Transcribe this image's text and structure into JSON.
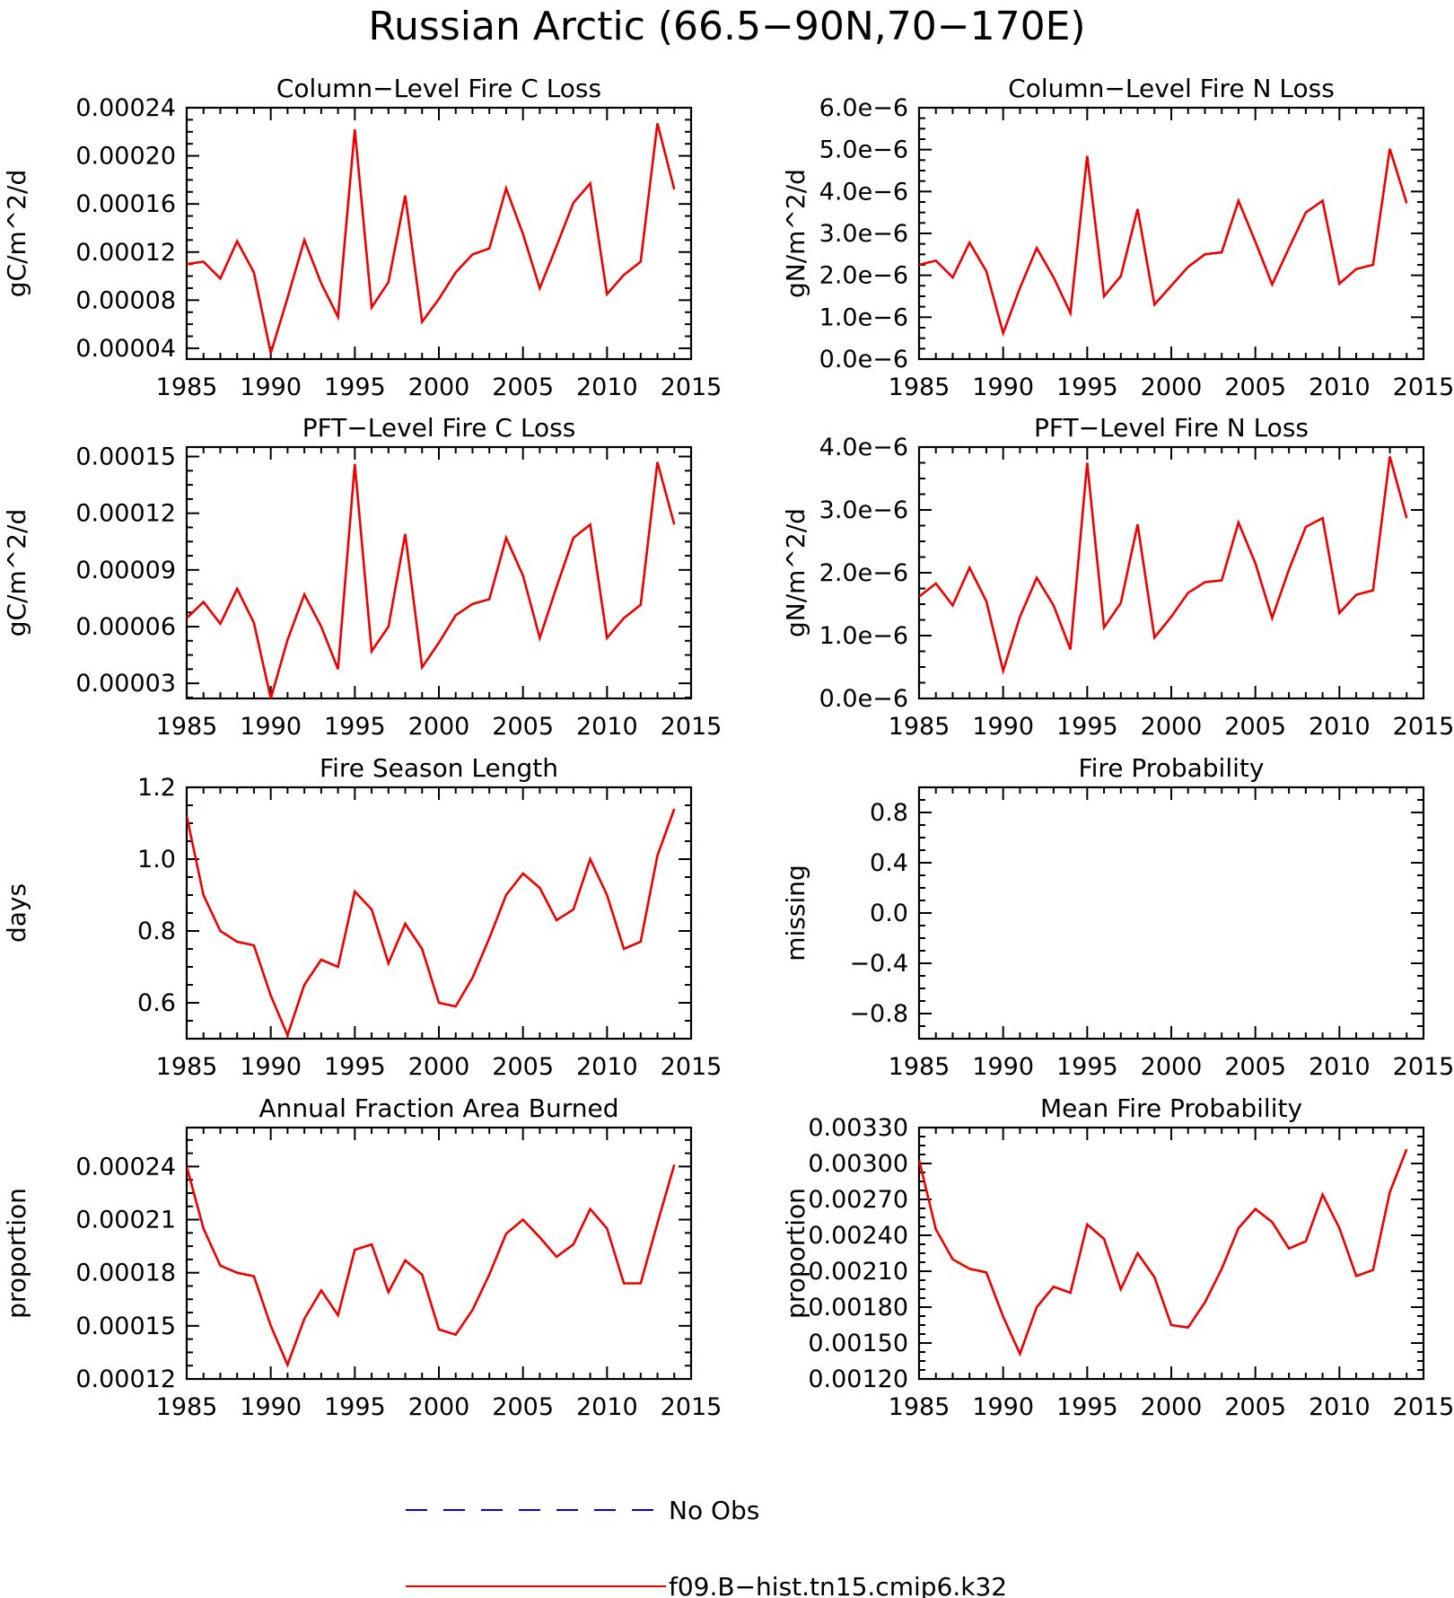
{
  "title": "Russian Arctic (66.5−90N,70−170E)",
  "colors": {
    "model": "#ee0000",
    "obs": "#0000ee",
    "axis": "#000000"
  },
  "legend": {
    "placement": "bottom-center",
    "entries": [
      {
        "label": "No Obs",
        "color": "#0000ee",
        "style": "dashed"
      },
      {
        "label": "f09.B−hist.tn15.cmip6.k32",
        "color": "#ee0000",
        "style": "solid"
      }
    ]
  },
  "chart_data": [
    {
      "id": "col-c",
      "type": "line",
      "title": "Column−Level Fire C Loss",
      "ylabel": "gC/m^2/d",
      "xlim": [
        1985,
        2015
      ],
      "ylim": [
        3.1e-05,
        0.00024
      ],
      "xticks": [
        1985,
        1990,
        1995,
        2000,
        2005,
        2010,
        2015
      ],
      "xtick_labels": [
        "1985",
        "1990",
        "1995",
        "2000",
        "2005",
        "2010",
        "2015"
      ],
      "yticks": [
        4e-05,
        8e-05,
        0.00012,
        0.00016,
        0.0002,
        0.00024
      ],
      "ytick_labels": [
        "0.00004",
        "0.00008",
        "0.00012",
        "0.00016",
        "0.00020",
        "0.00024"
      ],
      "x": [
        1985,
        1986,
        1987,
        1988,
        1989,
        1990,
        1991,
        1992,
        1993,
        1994,
        1995,
        1996,
        1997,
        1998,
        1999,
        2000,
        2001,
        2002,
        2003,
        2004,
        2005,
        2006,
        2007,
        2008,
        2009,
        2010,
        2011,
        2012,
        2013,
        2014
      ],
      "series": [
        {
          "name": "f09.B−hist.tn15.cmip6.k32",
          "values": [
            0.00011,
            0.000112,
            9.8e-05,
            0.000129,
            0.000103,
            3.6e-05,
            8.2e-05,
            0.00013,
            9.4e-05,
            6.6e-05,
            0.000222,
            7.4e-05,
            9.5e-05,
            0.000167,
            6.2e-05,
            8.1e-05,
            0.000103,
            0.000118,
            0.000123,
            0.000173,
            0.000135,
            9e-05,
            0.000125,
            0.000161,
            0.000177,
            8.5e-05,
            0.000101,
            0.000112,
            0.000227,
            0.000172
          ]
        }
      ]
    },
    {
      "id": "col-n",
      "type": "line",
      "title": "Column−Level Fire N Loss",
      "ylabel": "gN/m^2/d",
      "xlim": [
        1985,
        2015
      ],
      "ylim": [
        0.0,
        6e-06
      ],
      "xticks": [
        1985,
        1990,
        1995,
        2000,
        2005,
        2010,
        2015
      ],
      "xtick_labels": [
        "1985",
        "1990",
        "1995",
        "2000",
        "2005",
        "2010",
        "2015"
      ],
      "yticks": [
        0.0,
        1e-06,
        2e-06,
        3e-06,
        4e-06,
        5e-06,
        6e-06
      ],
      "ytick_labels": [
        "0.0e−6",
        "1.0e−6",
        "2.0e−6",
        "3.0e−6",
        "4.0e−6",
        "5.0e−6",
        "6.0e−6"
      ],
      "x": [
        1985,
        1986,
        1987,
        1988,
        1989,
        1990,
        1991,
        1992,
        1993,
        1994,
        1995,
        1996,
        1997,
        1998,
        1999,
        2000,
        2001,
        2002,
        2003,
        2004,
        2005,
        2006,
        2007,
        2008,
        2009,
        2010,
        2011,
        2012,
        2013,
        2014
      ],
      "series": [
        {
          "name": "f09.B−hist.tn15.cmip6.k32",
          "values": [
            2.25e-06,
            2.35e-06,
            1.95e-06,
            2.78e-06,
            2.1e-06,
            6.2e-07,
            1.7e-06,
            2.65e-06,
            1.95e-06,
            1.1e-06,
            4.85e-06,
            1.5e-06,
            1.98e-06,
            3.58e-06,
            1.3e-06,
            1.75e-06,
            2.2e-06,
            2.5e-06,
            2.55e-06,
            3.78e-06,
            2.8e-06,
            1.78e-06,
            2.65e-06,
            3.5e-06,
            3.78e-06,
            1.8e-06,
            2.15e-06,
            2.25e-06,
            5.02e-06,
            3.72e-06
          ]
        }
      ]
    },
    {
      "id": "pft-c",
      "type": "line",
      "title": "PFT−Level Fire C Loss",
      "ylabel": "gC/m^2/d",
      "xlim": [
        1985,
        2015
      ],
      "ylim": [
        2.2e-05,
        0.000155
      ],
      "xticks": [
        1985,
        1990,
        1995,
        2000,
        2005,
        2010,
        2015
      ],
      "xtick_labels": [
        "1985",
        "1990",
        "1995",
        "2000",
        "2005",
        "2010",
        "2015"
      ],
      "yticks": [
        3e-05,
        6e-05,
        9e-05,
        0.00012,
        0.00015
      ],
      "ytick_labels": [
        "0.00003",
        "0.00006",
        "0.00009",
        "0.00012",
        "0.00015"
      ],
      "x": [
        1985,
        1986,
        1987,
        1988,
        1989,
        1990,
        1991,
        1992,
        1993,
        1994,
        1995,
        1996,
        1997,
        1998,
        1999,
        2000,
        2001,
        2002,
        2003,
        2004,
        2005,
        2006,
        2007,
        2008,
        2009,
        2010,
        2011,
        2012,
        2013,
        2014
      ],
      "series": [
        {
          "name": "f09.B−hist.tn15.cmip6.k32",
          "values": [
            6.45e-05,
            7.3e-05,
            6.15e-05,
            8e-05,
            6.2e-05,
            2.2e-05,
            5.3e-05,
            7.7e-05,
            6e-05,
            3.75e-05,
            0.000146,
            4.7e-05,
            6e-05,
            0.000109,
            3.85e-05,
            5.15e-05,
            6.6e-05,
            7.2e-05,
            7.45e-05,
            0.000107,
            8.7e-05,
            5.4e-05,
            8.1e-05,
            0.000107,
            0.000114,
            5.4e-05,
            6.45e-05,
            7.15e-05,
            0.000147,
            0.000114
          ]
        }
      ]
    },
    {
      "id": "pft-n",
      "type": "line",
      "title": "PFT−Level Fire N Loss",
      "ylabel": "gN/m^2/d",
      "xlim": [
        1985,
        2015
      ],
      "ylim": [
        0.0,
        4e-06
      ],
      "xticks": [
        1985,
        1990,
        1995,
        2000,
        2005,
        2010,
        2015
      ],
      "xtick_labels": [
        "1985",
        "1990",
        "1995",
        "2000",
        "2005",
        "2010",
        "2015"
      ],
      "yticks": [
        0.0,
        1e-06,
        2e-06,
        3e-06,
        4e-06
      ],
      "ytick_labels": [
        "0.0e−6",
        "1.0e−6",
        "2.0e−6",
        "3.0e−6",
        "4.0e−6"
      ],
      "x": [
        1985,
        1986,
        1987,
        1988,
        1989,
        1990,
        1991,
        1992,
        1993,
        1994,
        1995,
        1996,
        1997,
        1998,
        1999,
        2000,
        2001,
        2002,
        2003,
        2004,
        2005,
        2006,
        2007,
        2008,
        2009,
        2010,
        2011,
        2012,
        2013,
        2014
      ],
      "series": [
        {
          "name": "f09.B−hist.tn15.cmip6.k32",
          "values": [
            1.62e-06,
            1.83e-06,
            1.48e-06,
            2.08e-06,
            1.55e-06,
            4.4e-07,
            1.3e-06,
            1.92e-06,
            1.48e-06,
            7.8e-07,
            3.75e-06,
            1.13e-06,
            1.52e-06,
            2.77e-06,
            9.7e-07,
            1.3e-06,
            1.68e-06,
            1.85e-06,
            1.88e-06,
            2.8e-06,
            2.15e-06,
            1.28e-06,
            2.05e-06,
            2.73e-06,
            2.87e-06,
            1.36e-06,
            1.65e-06,
            1.72e-06,
            3.85e-06,
            2.87e-06
          ]
        }
      ]
    },
    {
      "id": "season",
      "type": "line",
      "title": "Fire Season Length",
      "ylabel": "days",
      "xlim": [
        1985,
        2015
      ],
      "ylim": [
        0.5,
        1.2
      ],
      "xticks": [
        1985,
        1990,
        1995,
        2000,
        2005,
        2010,
        2015
      ],
      "xtick_labels": [
        "1985",
        "1990",
        "1995",
        "2000",
        "2005",
        "2010",
        "2015"
      ],
      "yticks": [
        0.6,
        0.8,
        1.0,
        1.2
      ],
      "ytick_labels": [
        "0.6",
        "0.8",
        "1.0",
        "1.2"
      ],
      "x": [
        1985,
        1986,
        1987,
        1988,
        1989,
        1990,
        1991,
        1992,
        1993,
        1994,
        1995,
        1996,
        1997,
        1998,
        1999,
        2000,
        2001,
        2002,
        2003,
        2004,
        2005,
        2006,
        2007,
        2008,
        2009,
        2010,
        2011,
        2012,
        2013,
        2014
      ],
      "series": [
        {
          "name": "f09.B−hist.tn15.cmip6.k32",
          "values": [
            1.12,
            0.9,
            0.8,
            0.77,
            0.76,
            0.62,
            0.51,
            0.65,
            0.72,
            0.7,
            0.91,
            0.86,
            0.71,
            0.82,
            0.75,
            0.6,
            0.59,
            0.67,
            0.78,
            0.9,
            0.96,
            0.92,
            0.83,
            0.86,
            1.0,
            0.9,
            0.75,
            0.77,
            1.01,
            1.14
          ]
        }
      ]
    },
    {
      "id": "prob",
      "type": "line",
      "title": "Fire Probability",
      "ylabel": "missing",
      "xlim": [
        1985,
        2015
      ],
      "ylim": [
        -1.0,
        1.0
      ],
      "xticks": [
        1985,
        1990,
        1995,
        2000,
        2005,
        2010,
        2015
      ],
      "xtick_labels": [
        "1985",
        "1990",
        "1995",
        "2000",
        "2005",
        "2010",
        "2015"
      ],
      "yticks": [
        -0.8,
        -0.4,
        0.0,
        0.4,
        0.8
      ],
      "ytick_labels": [
        "−0.8",
        "−0.4",
        "0.0",
        "0.4",
        "0.8"
      ],
      "x": [],
      "series": []
    },
    {
      "id": "area",
      "type": "line",
      "title": "Annual Fraction Area Burned",
      "ylabel": "proportion",
      "xlim": [
        1985,
        2015
      ],
      "ylim": [
        0.00012,
        0.000262
      ],
      "xticks": [
        1985,
        1990,
        1995,
        2000,
        2005,
        2010,
        2015
      ],
      "xtick_labels": [
        "1985",
        "1990",
        "1995",
        "2000",
        "2005",
        "2010",
        "2015"
      ],
      "yticks": [
        0.00012,
        0.00015,
        0.00018,
        0.00021,
        0.00024
      ],
      "ytick_labels": [
        "0.00012",
        "0.00015",
        "0.00018",
        "0.00021",
        "0.00024"
      ],
      "x": [
        1985,
        1986,
        1987,
        1988,
        1989,
        1990,
        1991,
        1992,
        1993,
        1994,
        1995,
        1996,
        1997,
        1998,
        1999,
        2000,
        2001,
        2002,
        2003,
        2004,
        2005,
        2006,
        2007,
        2008,
        2009,
        2010,
        2011,
        2012,
        2013,
        2014
      ],
      "series": [
        {
          "name": "f09.B−hist.tn15.cmip6.k32",
          "values": [
            0.00024,
            0.000205,
            0.000184,
            0.00018,
            0.000178,
            0.00015,
            0.000128,
            0.000154,
            0.00017,
            0.000156,
            0.000193,
            0.000196,
            0.000169,
            0.000187,
            0.000179,
            0.000148,
            0.000145,
            0.000159,
            0.000179,
            0.000202,
            0.00021,
            0.0002,
            0.000189,
            0.000196,
            0.000216,
            0.000205,
            0.000174,
            0.000174,
            0.000208,
            0.000241
          ]
        }
      ]
    },
    {
      "id": "mean-prob",
      "type": "line",
      "title": "Mean Fire Probability",
      "ylabel": "proportion",
      "xlim": [
        1985,
        2015
      ],
      "ylim": [
        0.0012,
        0.0033
      ],
      "xticks": [
        1985,
        1990,
        1995,
        2000,
        2005,
        2010,
        2015
      ],
      "xtick_labels": [
        "1985",
        "1990",
        "1995",
        "2000",
        "2005",
        "2010",
        "2015"
      ],
      "yticks": [
        0.0012,
        0.0015,
        0.0018,
        0.0021,
        0.0024,
        0.0027,
        0.003,
        0.0033
      ],
      "ytick_labels": [
        "0.00120",
        "0.00150",
        "0.00180",
        "0.00210",
        "0.00240",
        "0.00270",
        "0.00300",
        "0.00330"
      ],
      "x": [
        1985,
        1986,
        1987,
        1988,
        1989,
        1990,
        1991,
        1992,
        1993,
        1994,
        1995,
        1996,
        1997,
        1998,
        1999,
        2000,
        2001,
        2002,
        2003,
        2004,
        2005,
        2006,
        2007,
        2008,
        2009,
        2010,
        2011,
        2012,
        2013,
        2014
      ],
      "series": [
        {
          "name": "f09.B−hist.tn15.cmip6.k32",
          "values": [
            0.00303,
            0.00245,
            0.0022,
            0.00212,
            0.00209,
            0.00172,
            0.00141,
            0.0018,
            0.00197,
            0.00192,
            0.00249,
            0.00237,
            0.00195,
            0.00225,
            0.00205,
            0.00165,
            0.00163,
            0.00184,
            0.00212,
            0.00246,
            0.00262,
            0.00251,
            0.00229,
            0.00235,
            0.00274,
            0.00246,
            0.00206,
            0.00211,
            0.00276,
            0.00312
          ]
        }
      ]
    }
  ]
}
